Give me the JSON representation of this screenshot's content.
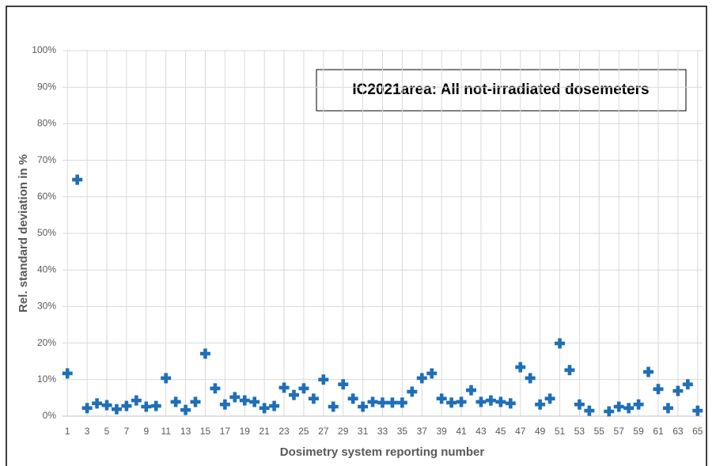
{
  "chart_data": {
    "type": "scatter",
    "title": "IC2021area: All not-irradiated dosemeters",
    "x_label": "Dosimetry system reporting number",
    "y_label": "Rel. standard deviation in %",
    "categories": [
      "1",
      null,
      "3",
      null,
      "5",
      null,
      "7",
      null,
      "9",
      null,
      "11",
      null,
      "13",
      null,
      "15",
      null,
      "17",
      null,
      "19",
      null,
      "21",
      null,
      "23",
      null,
      "25",
      null,
      "27",
      null,
      "29",
      null,
      "31",
      null,
      "33",
      null,
      "35",
      null,
      "37",
      null,
      "39",
      null,
      "41",
      null,
      "43",
      null,
      "45",
      null,
      "47",
      null,
      "49",
      null,
      "51",
      null,
      "53",
      null,
      "55",
      null,
      "57",
      null,
      "59",
      null,
      "61",
      null,
      "63",
      null,
      "65"
    ],
    "values": [
      11.7,
      64.7,
      2.2,
      3.5,
      3.0,
      1.9,
      2.8,
      4.3,
      2.6,
      2.8,
      10.4,
      3.9,
      1.7,
      3.9,
      17.1,
      7.6,
      3.2,
      5.2,
      4.3,
      3.9,
      2.2,
      2.8,
      7.8,
      5.8,
      7.6,
      4.8,
      10.0,
      2.6,
      8.7,
      4.8,
      2.6,
      3.9,
      3.7,
      3.7,
      3.7,
      6.7,
      10.4,
      11.7,
      4.8,
      3.7,
      3.9,
      7.1,
      3.9,
      4.3,
      3.9,
      3.5,
      13.4,
      10.4,
      3.2,
      4.8,
      19.9,
      12.6,
      3.2,
      1.5,
      null,
      1.3,
      2.6,
      2.2,
      3.2,
      12.1,
      7.4,
      2.2,
      6.9,
      8.7,
      1.5
    ],
    "color": "#1f6fb8",
    "ylim": [
      0,
      100
    ],
    "yticks": [
      {
        "value": 0,
        "label": "0%"
      },
      {
        "value": 10,
        "label": "10%"
      },
      {
        "value": 20,
        "label": "20%"
      },
      {
        "value": 30,
        "label": "30%"
      },
      {
        "value": 40,
        "label": "40%"
      },
      {
        "value": 50,
        "label": "50%"
      },
      {
        "value": 60,
        "label": "60%"
      },
      {
        "value": 70,
        "label": "70%"
      },
      {
        "value": 80,
        "label": "80%"
      },
      {
        "value": 90,
        "label": "90%"
      },
      {
        "value": 100,
        "label": "100%"
      }
    ],
    "grid": true
  }
}
